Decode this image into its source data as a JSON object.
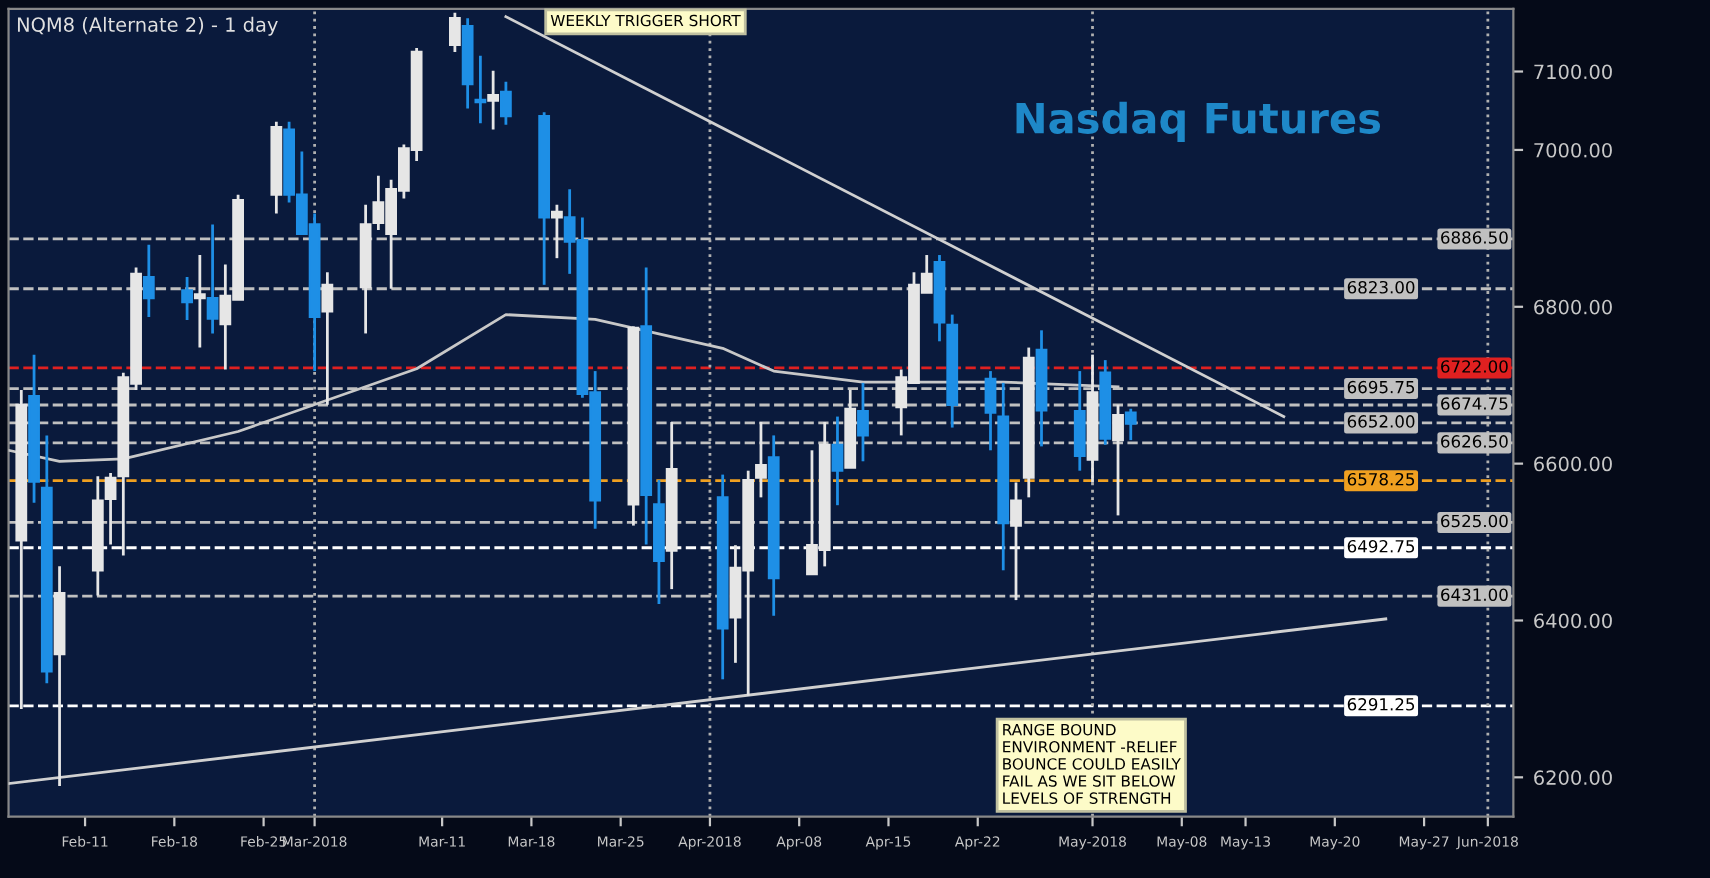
{
  "chart_data": {
    "type": "candlestick",
    "title": "Nasdaq Futures",
    "subtitle": "NQM8 (Alternate 2) - 1 day",
    "x": [
      "2018-02-06",
      "2018-02-07",
      "2018-02-08",
      "2018-02-09",
      "2018-02-12",
      "2018-02-13",
      "2018-02-14",
      "2018-02-15",
      "2018-02-16",
      "2018-02-19",
      "2018-02-20",
      "2018-02-21",
      "2018-02-22",
      "2018-02-23",
      "2018-02-26",
      "2018-02-27",
      "2018-02-28",
      "2018-03-01",
      "2018-03-02",
      "2018-03-05",
      "2018-03-06",
      "2018-03-07",
      "2018-03-08",
      "2018-03-09",
      "2018-03-12",
      "2018-03-13",
      "2018-03-14",
      "2018-03-15",
      "2018-03-16",
      "2018-03-19",
      "2018-03-20",
      "2018-03-21",
      "2018-03-22",
      "2018-03-23",
      "2018-03-26",
      "2018-03-27",
      "2018-03-28",
      "2018-03-29",
      "2018-04-02",
      "2018-04-03",
      "2018-04-04",
      "2018-04-05",
      "2018-04-06",
      "2018-04-09",
      "2018-04-10",
      "2018-04-11",
      "2018-04-12",
      "2018-04-13",
      "2018-04-16",
      "2018-04-17",
      "2018-04-18",
      "2018-04-19",
      "2018-04-20",
      "2018-04-23",
      "2018-04-24",
      "2018-04-25",
      "2018-04-26",
      "2018-04-27",
      "2018-04-30",
      "2018-05-01",
      "2018-05-02",
      "2018-05-03",
      "2018-05-04"
    ],
    "ohlc": [
      [
        6502,
        6694,
        6287,
        6675
      ],
      [
        6686,
        6739,
        6550,
        6577
      ],
      [
        6569,
        6636,
        6320,
        6335
      ],
      [
        6357,
        6469,
        6189,
        6435
      ],
      [
        6464,
        6584,
        6432,
        6553
      ],
      [
        6555,
        6588,
        6497,
        6582
      ],
      [
        6584,
        6716,
        6483,
        6710
      ],
      [
        6702,
        6850,
        6694,
        6842
      ],
      [
        6838,
        6879,
        6787,
        6811
      ],
      [
        6821,
        6838,
        6783,
        6806
      ],
      [
        6811,
        6866,
        6748,
        6816
      ],
      [
        6811,
        6905,
        6766,
        6785
      ],
      [
        6778,
        6854,
        6720,
        6814
      ],
      [
        6809,
        6943,
        6809,
        6936
      ],
      [
        6943,
        7036,
        6919,
        7029
      ],
      [
        7026,
        7036,
        6933,
        6943
      ],
      [
        6943,
        6998,
        6893,
        6893
      ],
      [
        6905,
        6919,
        6718,
        6787
      ],
      [
        6794,
        6844,
        6675,
        6828
      ],
      [
        6825,
        6930,
        6766,
        6905
      ],
      [
        6907,
        6967,
        6898,
        6933
      ],
      [
        6893,
        6962,
        6823,
        6950
      ],
      [
        6948,
        7007,
        6938,
        7002
      ],
      [
        7000,
        7130,
        6986,
        7125
      ],
      [
        7134,
        7175,
        7125,
        7168
      ],
      [
        7158,
        7168,
        7053,
        7084
      ],
      [
        7064,
        7120,
        7034,
        7061
      ],
      [
        7063,
        7101,
        7026,
        7070
      ],
      [
        7074,
        7087,
        7032,
        7043
      ],
      [
        7043,
        7048,
        6828,
        6914
      ],
      [
        6914,
        6930,
        6862,
        6921
      ],
      [
        6914,
        6950,
        6842,
        6883
      ],
      [
        6885,
        6914,
        6684,
        6689
      ],
      [
        6691,
        6718,
        6517,
        6553
      ],
      [
        6548,
        6775,
        6521,
        6773
      ],
      [
        6775,
        6850,
        6497,
        6560
      ],
      [
        6548,
        6579,
        6421,
        6476
      ],
      [
        6489,
        6653,
        6440,
        6593
      ],
      [
        6557,
        6586,
        6325,
        6390
      ],
      [
        6404,
        6496,
        6346,
        6467
      ],
      [
        6464,
        6591,
        6304,
        6579
      ],
      [
        6582,
        6653,
        6557,
        6598
      ],
      [
        6608,
        6636,
        6406,
        6454
      ],
      [
        6459,
        6617,
        6459,
        6496
      ],
      [
        6490,
        6653,
        6469,
        6624
      ],
      [
        6624,
        6660,
        6547,
        6591
      ],
      [
        6595,
        6694,
        6595,
        6670
      ],
      [
        6667,
        6703,
        6603,
        6636
      ],
      [
        6672,
        6720,
        6636,
        6710
      ],
      [
        6703,
        6844,
        6703,
        6828
      ],
      [
        6818,
        6866,
        6818,
        6842
      ],
      [
        6857,
        6866,
        6756,
        6780
      ],
      [
        6777,
        6790,
        6646,
        6675
      ],
      [
        6708,
        6718,
        6617,
        6665
      ],
      [
        6660,
        6703,
        6464,
        6524
      ],
      [
        6521,
        6576,
        6426,
        6553
      ],
      [
        6582,
        6748,
        6557,
        6735
      ],
      [
        6745,
        6770,
        6622,
        6668
      ],
      [
        6667,
        6718,
        6591,
        6610
      ],
      [
        6605,
        6739,
        6576,
        6691
      ],
      [
        6716,
        6732,
        6624,
        6632
      ],
      [
        6630,
        6675,
        6534,
        6662
      ],
      [
        6665,
        6670,
        6630,
        6651
      ]
    ],
    "colors": [
      "#e6e6e6",
      "#1e8fe6",
      "#1e8fe6",
      "#e6e6e6",
      "#e6e6e6",
      "#e6e6e6",
      "#e6e6e6",
      "#e6e6e6",
      "#1e8fe6",
      "#1e8fe6",
      "#e6e6e6",
      "#1e8fe6",
      "#e6e6e6",
      "#e6e6e6",
      "#e6e6e6",
      "#1e8fe6",
      "#1e8fe6",
      "#1e8fe6",
      "#e6e6e6",
      "#e6e6e6",
      "#e6e6e6",
      "#e6e6e6",
      "#e6e6e6",
      "#e6e6e6",
      "#e6e6e6",
      "#1e8fe6",
      "#1e8fe6",
      "#e6e6e6",
      "#1e8fe6",
      "#1e8fe6",
      "#e6e6e6",
      "#1e8fe6",
      "#1e8fe6",
      "#1e8fe6",
      "#e6e6e6",
      "#1e8fe6",
      "#1e8fe6",
      "#e6e6e6",
      "#1e8fe6",
      "#e6e6e6",
      "#e6e6e6",
      "#e6e6e6",
      "#1e8fe6",
      "#e6e6e6",
      "#e6e6e6",
      "#1e8fe6",
      "#e6e6e6",
      "#1e8fe6",
      "#e6e6e6",
      "#e6e6e6",
      "#e6e6e6",
      "#1e8fe6",
      "#1e8fe6",
      "#1e8fe6",
      "#1e8fe6",
      "#e6e6e6",
      "#e6e6e6",
      "#1e8fe6",
      "#1e8fe6",
      "#e6e6e6",
      "#1e8fe6",
      "#e6e6e6",
      "#1e8fe6"
    ],
    "series": [
      {
        "type": "line",
        "color": "#c8c8c8",
        "x": [
          "2018-02-05",
          "2018-02-09",
          "2018-02-14",
          "2018-02-23",
          "2018-03-09",
          "2018-03-16",
          "2018-03-23",
          "2018-04-02",
          "2018-04-06",
          "2018-04-13",
          "2018-04-24",
          "2018-05-03"
        ],
        "values": [
          6617,
          6603,
          6606,
          6641,
          6721,
          6790,
          6784,
          6747,
          6718,
          6704,
          6704,
          6698
        ]
      },
      {
        "type": "line",
        "color": "#d0d0d0",
        "x": [
          "2018-03-16",
          "2018-05-16"
        ],
        "values": [
          7170,
          6660
        ]
      },
      {
        "type": "line",
        "color": "#d0d0d0",
        "x": [
          "2018-02-05",
          "2018-05-24"
        ],
        "values": [
          6192,
          6402
        ]
      }
    ],
    "xlim": [
      "2018-02-05",
      "2018-06-03"
    ],
    "xticks": [
      {
        "value": "2018-02-11",
        "label": "Feb-11"
      },
      {
        "value": "2018-02-18",
        "label": "Feb-18"
      },
      {
        "value": "2018-02-25",
        "label": "Feb-25"
      },
      {
        "value": "2018-03-01",
        "label": "Mar-2018"
      },
      {
        "value": "2018-03-11",
        "label": "Mar-11"
      },
      {
        "value": "2018-03-18",
        "label": "Mar-18"
      },
      {
        "value": "2018-03-25",
        "label": "Mar-25"
      },
      {
        "value": "2018-04-01",
        "label": "Apr-2018"
      },
      {
        "value": "2018-04-08",
        "label": "Apr-08"
      },
      {
        "value": "2018-04-15",
        "label": "Apr-15"
      },
      {
        "value": "2018-04-22",
        "label": "Apr-22"
      },
      {
        "value": "2018-05-01",
        "label": "May-2018"
      },
      {
        "value": "2018-05-08",
        "label": "May-08"
      },
      {
        "value": "2018-05-13",
        "label": "May-13"
      },
      {
        "value": "2018-05-20",
        "label": "May-20"
      },
      {
        "value": "2018-05-27",
        "label": "May-27"
      },
      {
        "value": "2018-06-01",
        "label": "Jun-2018"
      }
    ],
    "ylim": [
      6150,
      7180
    ],
    "yticks": [
      {
        "value": 6200,
        "label": "6200.00"
      },
      {
        "value": 6400,
        "label": "6400.00"
      },
      {
        "value": 6600,
        "label": "6600.00"
      },
      {
        "value": 6800,
        "label": "6800.00"
      },
      {
        "value": 7000,
        "label": "7000.00"
      },
      {
        "value": 7100,
        "label": "7100.00"
      }
    ],
    "ref_lines": [
      {
        "axis": "y",
        "value": 6886.5,
        "label": "6886.50",
        "color": "#c0c0c0",
        "line_style": "dashed"
      },
      {
        "axis": "y",
        "value": 6823,
        "label": "6823.00",
        "color": "#c0c0c0",
        "line_style": "dashed"
      },
      {
        "axis": "y",
        "value": 6722,
        "label": "6722.00",
        "color": "#e02020",
        "line_style": "dashed"
      },
      {
        "axis": "y",
        "value": 6695.75,
        "label": "6695.75",
        "color": "#c0c0c0",
        "line_style": "dashed"
      },
      {
        "axis": "y",
        "value": 6674.75,
        "label": "6674.75",
        "color": "#c0c0c0",
        "line_style": "dashed"
      },
      {
        "axis": "y",
        "value": 6652,
        "label": "6652.00",
        "color": "#c0c0c0",
        "line_style": "dashed"
      },
      {
        "axis": "y",
        "value": 6626.5,
        "label": "6626.50",
        "color": "#c0c0c0",
        "line_style": "dashed"
      },
      {
        "axis": "y",
        "value": 6578.25,
        "label": "6578.25",
        "color": "#f0a020",
        "line_style": "dashed"
      },
      {
        "axis": "y",
        "value": 6525,
        "label": "6525.00",
        "color": "#c0c0c0",
        "line_style": "dashed"
      },
      {
        "axis": "y",
        "value": 6492.75,
        "label": "6492.75",
        "color": "#ffffff",
        "line_style": "dashed"
      },
      {
        "axis": "y",
        "value": 6431,
        "label": "6431.00",
        "color": "#c0c0c0",
        "line_style": "dashed"
      },
      {
        "axis": "y",
        "value": 6291.25,
        "label": "6291.25",
        "color": "#ffffff",
        "line_style": "dashed"
      },
      {
        "axis": "x",
        "value": "2018-03-01",
        "color": "#b0b0b0",
        "line_style": "dotted"
      },
      {
        "axis": "x",
        "value": "2018-04-01",
        "color": "#b0b0b0",
        "line_style": "dotted"
      },
      {
        "axis": "x",
        "value": "2018-05-01",
        "color": "#b0b0b0",
        "line_style": "dotted"
      },
      {
        "axis": "x",
        "value": "2018-06-01",
        "color": "#b0b0b0",
        "line_style": "dotted"
      }
    ],
    "annotations": [
      "WEEKLY TRIGGER SHORT",
      "RANGE BOUND\nENVIRONMENT -RELIEF\nBOUNCE COULD EASILY\nFAIL AS WE SIT BELOW\nLEVELS OF STRENGTH"
    ],
    "grid": false,
    "legend": false
  }
}
